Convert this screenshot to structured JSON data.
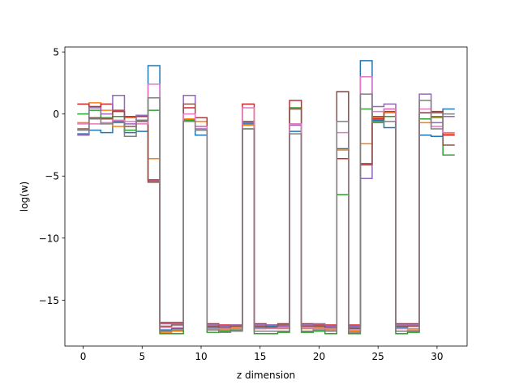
{
  "chart_data": {
    "type": "line",
    "drawstyle": "steps-mid",
    "title": "",
    "xlabel": "z dimension",
    "ylabel": "log(w)",
    "xlim": [
      -1.55,
      32.55
    ],
    "ylim": [
      -18.7,
      5.4
    ],
    "xticks": [
      0,
      5,
      10,
      15,
      20,
      25,
      30
    ],
    "yticks": [
      5,
      0,
      -5,
      -10,
      -15
    ],
    "ytick_labels": [
      "5",
      "0",
      "−5",
      "−10",
      "−15"
    ],
    "grid": false,
    "legend": "none",
    "x": [
      0,
      1,
      2,
      3,
      4,
      5,
      6,
      7,
      8,
      9,
      10,
      11,
      12,
      13,
      14,
      15,
      16,
      17,
      18,
      19,
      20,
      21,
      22,
      23,
      24,
      25,
      26,
      27,
      28,
      29,
      30,
      31
    ],
    "series": [
      {
        "color": "#1f77b4",
        "values": [
          -1.6,
          -1.3,
          -1.5,
          -0.6,
          -1.5,
          -1.4,
          3.9,
          -17.4,
          -17.3,
          -0.5,
          -1.7,
          -17.2,
          -17.3,
          -17.1,
          -0.8,
          -17.2,
          -17.1,
          -17.2,
          -1.4,
          -17.1,
          -17.2,
          -17.3,
          -2.8,
          -17.3,
          4.3,
          -0.5,
          -1.1,
          -17.2,
          -17.1,
          -1.7,
          -1.8,
          0.4
        ]
      },
      {
        "color": "#ff7f0e",
        "values": [
          -0.7,
          0.9,
          0.3,
          -1.0,
          -0.3,
          -0.1,
          -3.6,
          -17.6,
          -17.5,
          -0.4,
          -0.6,
          -17.3,
          -17.4,
          -17.2,
          -0.9,
          -17.3,
          -17.2,
          -17.3,
          -0.8,
          -17.3,
          -17.2,
          -17.4,
          -2.9,
          -17.5,
          -2.4,
          -0.3,
          0.1,
          -17.5,
          -17.4,
          -0.7,
          -0.3,
          -1.6
        ]
      },
      {
        "color": "#2ca02c",
        "values": [
          0.0,
          0.3,
          -0.3,
          -0.2,
          -1.3,
          -0.5,
          0.3,
          -17.7,
          -17.7,
          -0.5,
          -0.3,
          -17.6,
          -17.5,
          -17.4,
          -1.2,
          -17.7,
          -17.7,
          -17.6,
          0.5,
          -17.6,
          -17.5,
          -17.7,
          -6.5,
          -17.7,
          0.4,
          -0.6,
          -0.2,
          -17.7,
          -17.6,
          -0.4,
          -0.2,
          -3.3
        ]
      },
      {
        "color": "#d62728",
        "values": [
          0.8,
          0.6,
          0.8,
          0.3,
          -0.2,
          -0.2,
          -5.3,
          -16.8,
          -16.8,
          0.5,
          -0.3,
          -16.9,
          -17.0,
          -17.0,
          0.8,
          -16.9,
          -17.0,
          -16.9,
          1.1,
          -16.9,
          -17.0,
          -17.0,
          -3.6,
          -17.0,
          -4.0,
          -0.4,
          0.2,
          -16.9,
          -16.9,
          0.1,
          0.2,
          -1.7
        ]
      },
      {
        "color": "#9467bd",
        "values": [
          -1.7,
          0.5,
          0.0,
          1.5,
          -0.8,
          -0.1,
          -5.4,
          -16.9,
          -16.9,
          1.5,
          -1.2,
          -17.0,
          -17.1,
          -17.0,
          -0.7,
          -17.0,
          -17.0,
          -17.1,
          -0.9,
          -17.0,
          -16.9,
          -17.1,
          1.8,
          -17.1,
          -5.2,
          0.6,
          0.8,
          -17.0,
          -17.0,
          1.6,
          -0.7,
          -0.2
        ]
      },
      {
        "color": "#8c564b",
        "values": [
          -1.2,
          -0.3,
          -0.4,
          0.2,
          -1.0,
          -0.6,
          -5.5,
          -17.1,
          -17.0,
          0.8,
          -1.0,
          -17.1,
          -17.2,
          -17.1,
          -0.6,
          -17.1,
          -17.2,
          -17.0,
          0.4,
          -17.1,
          -17.1,
          -17.2,
          1.8,
          -17.2,
          -4.1,
          -0.2,
          0.4,
          -17.1,
          -17.1,
          0.1,
          0.1,
          -2.5
        ]
      },
      {
        "color": "#e377c2",
        "values": [
          -0.8,
          -0.8,
          -0.7,
          -0.5,
          -0.6,
          -0.8,
          2.4,
          -17.2,
          -17.2,
          0.0,
          -1.0,
          -17.3,
          -17.3,
          -17.3,
          0.5,
          -17.3,
          -17.3,
          -17.2,
          -0.8,
          -17.2,
          -17.3,
          -17.3,
          -1.5,
          -17.4,
          3.0,
          0.2,
          0.4,
          -17.3,
          -17.3,
          0.4,
          -1.0,
          -1.5
        ]
      },
      {
        "color": "#7f7f7f",
        "values": [
          -1.3,
          -0.4,
          -0.8,
          -0.7,
          -1.8,
          -0.5,
          1.3,
          -17.5,
          -17.4,
          -0.6,
          -1.3,
          -17.4,
          -17.6,
          -17.5,
          -1.2,
          -17.5,
          -17.5,
          -17.5,
          -1.6,
          -17.5,
          -17.4,
          -17.5,
          -0.6,
          -17.6,
          1.6,
          -0.7,
          -0.6,
          -17.5,
          -17.5,
          1.1,
          -1.2,
          0.0
        ]
      }
    ]
  }
}
